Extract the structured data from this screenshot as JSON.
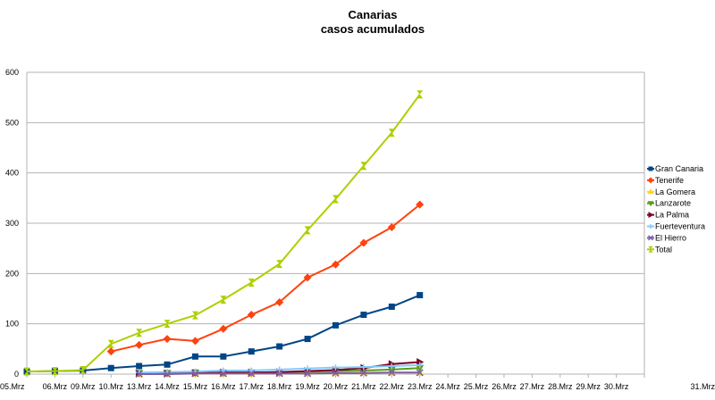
{
  "chart_data": {
    "type": "line",
    "title": "Canarias",
    "subtitle": "casos acumulados",
    "xlabel": "",
    "ylabel": "",
    "ylim": [
      0,
      600
    ],
    "yticks": [
      0,
      100,
      200,
      300,
      400,
      500,
      600
    ],
    "grid": "horizontal",
    "legend_position": "right",
    "categories": [
      "05.Mrz",
      "06.Mrz",
      "09.Mrz",
      "10.Mrz",
      "13.Mrz",
      "14.Mrz",
      "15.Mrz",
      "16.Mrz",
      "17.Mrz",
      "18.Mrz",
      "19.Mrz",
      "20.Mrz",
      "21.Mrz",
      "22.Mrz",
      "23.Mrz",
      "24.Mrz",
      "25.Mrz",
      "26.Mrz",
      "27.Mrz",
      "28.Mrz",
      "29.Mrz",
      "30.Mrz",
      "31.Mrz"
    ],
    "series": [
      {
        "name": "Gran Canaria",
        "color": "#004586",
        "marker": "square",
        "values": [
          5,
          6,
          7,
          12,
          16,
          19,
          35,
          35,
          45,
          55,
          70,
          97,
          118,
          134,
          157,
          null,
          null,
          null,
          null,
          null,
          null,
          null,
          null
        ]
      },
      {
        "name": "Tenerife",
        "color": "#ff420e",
        "marker": "diamond",
        "values": [
          null,
          null,
          null,
          45,
          58,
          70,
          66,
          90,
          118,
          143,
          192,
          218,
          261,
          292,
          337,
          null,
          null,
          null,
          null,
          null,
          null,
          null,
          null
        ]
      },
      {
        "name": "La Gomera",
        "color": "#ffd320",
        "marker": "triangle",
        "values": [
          null,
          null,
          null,
          null,
          1,
          1,
          1,
          1,
          1,
          2,
          2,
          2,
          3,
          3,
          3,
          null,
          null,
          null,
          null,
          null,
          null,
          null,
          null
        ]
      },
      {
        "name": "Lanzarote",
        "color": "#579d1c",
        "marker": "triangle-down",
        "values": [
          null,
          null,
          null,
          null,
          2,
          2,
          3,
          3,
          3,
          4,
          5,
          6,
          7,
          9,
          12,
          null,
          null,
          null,
          null,
          null,
          null,
          null,
          null
        ]
      },
      {
        "name": "La Palma",
        "color": "#7e0021",
        "marker": "triangle-right",
        "values": [
          null,
          null,
          null,
          null,
          1,
          1,
          2,
          3,
          3,
          4,
          6,
          8,
          12,
          20,
          24,
          null,
          null,
          null,
          null,
          null,
          null,
          null,
          null
        ]
      },
      {
        "name": "Fuerteventura",
        "color": "#83caff",
        "marker": "star",
        "values": [
          null,
          null,
          null,
          null,
          3,
          4,
          5,
          7,
          7,
          9,
          11,
          13,
          14,
          16,
          18,
          null,
          null,
          null,
          null,
          null,
          null,
          null,
          null
        ]
      },
      {
        "name": "El Hierro",
        "color": "#7f5fa8",
        "marker": "cross",
        "values": [
          null,
          null,
          null,
          null,
          0,
          0,
          1,
          1,
          1,
          1,
          1,
          2,
          2,
          3,
          3,
          null,
          null,
          null,
          null,
          null,
          null,
          null,
          null
        ]
      },
      {
        "name": "Total",
        "color": "#aecf00",
        "marker": "hourglass",
        "values": [
          5,
          6,
          8,
          60,
          82,
          100,
          117,
          148,
          182,
          219,
          286,
          348,
          414,
          480,
          556,
          null,
          null,
          null,
          null,
          null,
          null,
          null,
          null
        ]
      }
    ]
  }
}
